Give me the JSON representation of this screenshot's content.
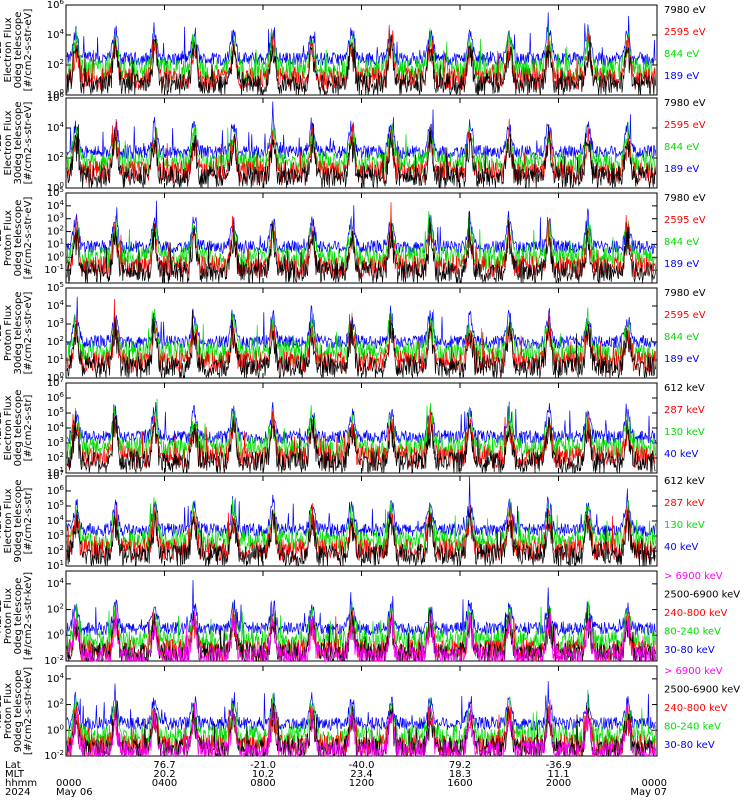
{
  "chart_data": {
    "type": "line",
    "panels": [
      {
        "ylabel": [
          "TED",
          "Electron Flux",
          "0deg telescope",
          "[#/cm2-s-str-eV]"
        ],
        "ylim": [
          1,
          1000000
        ],
        "ytick_labels": [
          "10^0",
          "10^2",
          "10^4",
          "10^6"
        ],
        "legend": [
          {
            "label": "7980 eV",
            "color": "#000000"
          },
          {
            "label": "2595 eV",
            "color": "#ff0000"
          },
          {
            "label": "844 eV",
            "color": "#00dd00"
          },
          {
            "label": "189 eV",
            "color": "#0000ff"
          }
        ]
      },
      {
        "ylabel": [
          "TED",
          "Electron Flux",
          "30deg telescope",
          "[#/cm2-s-str-eV]"
        ],
        "ylim": [
          1,
          1000000
        ],
        "ytick_labels": [
          "10^0",
          "10^2",
          "10^4",
          "10^6"
        ],
        "legend": [
          {
            "label": "7980 eV",
            "color": "#000000"
          },
          {
            "label": "2595 eV",
            "color": "#ff0000"
          },
          {
            "label": "844 eV",
            "color": "#00dd00"
          },
          {
            "label": "189 eV",
            "color": "#0000ff"
          }
        ]
      },
      {
        "ylabel": [
          "TED",
          "Proton Flux",
          "0deg telescope",
          "[#/cm2-s-str-eV]"
        ],
        "ylim": [
          0.01,
          100000
        ],
        "ytick_labels": [
          "10^-1",
          "10^0",
          "10^1",
          "10^2",
          "10^3",
          "10^4",
          "10^5"
        ],
        "legend": [
          {
            "label": "7980 eV",
            "color": "#000000"
          },
          {
            "label": "2595 eV",
            "color": "#ff0000"
          },
          {
            "label": "844 eV",
            "color": "#00dd00"
          },
          {
            "label": "189 eV",
            "color": "#0000ff"
          }
        ]
      },
      {
        "ylabel": [
          "TED",
          "Proton Flux",
          "30deg telescope",
          "[#/cm2-s-str-eV]"
        ],
        "ylim": [
          1,
          100000
        ],
        "ytick_labels": [
          "10^0",
          "10^1",
          "10^2",
          "10^3",
          "10^4",
          "10^5"
        ],
        "legend": [
          {
            "label": "7980 eV",
            "color": "#000000"
          },
          {
            "label": "2595 eV",
            "color": "#ff0000"
          },
          {
            "label": "844 eV",
            "color": "#00dd00"
          },
          {
            "label": "189 eV",
            "color": "#0000ff"
          }
        ]
      },
      {
        "ylabel": [
          "MEPED",
          "Electron Flux",
          "0deg telescope",
          "[#/cm2-s-str]"
        ],
        "ylim": [
          10,
          10000000
        ],
        "ytick_labels": [
          "10^1",
          "10^2",
          "10^3",
          "10^4",
          "10^5",
          "10^6",
          "10^7"
        ],
        "legend": [
          {
            "label": "612 keV",
            "color": "#000000"
          },
          {
            "label": "287 keV",
            "color": "#ff0000"
          },
          {
            "label": "130 keV",
            "color": "#00dd00"
          },
          {
            "label": "40 keV",
            "color": "#0000ff"
          }
        ]
      },
      {
        "ylabel": [
          "MEPED",
          "Electron Flux",
          "90deg telescope",
          "[#/cm2-s-str]"
        ],
        "ylim": [
          10,
          10000000
        ],
        "ytick_labels": [
          "10^1",
          "10^2",
          "10^3",
          "10^4",
          "10^5",
          "10^6",
          "10^7"
        ],
        "legend": [
          {
            "label": "612 keV",
            "color": "#000000"
          },
          {
            "label": "287 keV",
            "color": "#ff0000"
          },
          {
            "label": "130 keV",
            "color": "#00dd00"
          },
          {
            "label": "40 keV",
            "color": "#0000ff"
          }
        ]
      },
      {
        "ylabel": [
          "MEPED",
          "Proton Flux",
          "0deg telescope",
          "[#/cm2-s-str-keV]"
        ],
        "ylim": [
          0.01,
          100000
        ],
        "ytick_labels": [
          "10^-2",
          "10^0",
          "10^2",
          "10^4"
        ],
        "legend": [
          {
            "label": "> 6900 keV",
            "color": "#ff00ff"
          },
          {
            "label": "2500-6900 keV",
            "color": "#000000"
          },
          {
            "label": "240-800 keV",
            "color": "#ff0000"
          },
          {
            "label": "80-240 keV",
            "color": "#00dd00"
          },
          {
            "label": "30-80 keV",
            "color": "#0000ff"
          }
        ]
      },
      {
        "ylabel": [
          "MEPED",
          "Proton Flux",
          "90deg telescope",
          "[#/cm2-s-str-keV]"
        ],
        "ylim": [
          0.01,
          100000
        ],
        "ytick_labels": [
          "10^-2",
          "10^0",
          "10^2",
          "10^4"
        ],
        "legend": [
          {
            "label": "> 6900 keV",
            "color": "#ff00ff"
          },
          {
            "label": "2500-6900 keV",
            "color": "#000000"
          },
          {
            "label": "240-800 keV",
            "color": "#ff0000"
          },
          {
            "label": "80-240 keV",
            "color": "#00dd00"
          },
          {
            "label": "30-80 keV",
            "color": "#0000ff"
          }
        ]
      }
    ],
    "x_axis": {
      "row_labels": [
        "Lat",
        "MLT",
        "hhmm",
        "2024"
      ],
      "ticks": [
        {
          "hour": 0,
          "lat": "",
          "mlt": "",
          "hhmm": "0000",
          "date": "May 06"
        },
        {
          "hour": 4,
          "lat": "76.7",
          "mlt": "20.2",
          "hhmm": "0400",
          "date": ""
        },
        {
          "hour": 8,
          "lat": "-21.0",
          "mlt": "10.2",
          "hhmm": "0800",
          "date": ""
        },
        {
          "hour": 12,
          "lat": "-40.0",
          "mlt": "23.4",
          "hhmm": "1200",
          "date": ""
        },
        {
          "hour": 16,
          "lat": "79.2",
          "mlt": "18.3",
          "hhmm": "1600",
          "date": ""
        },
        {
          "hour": 20,
          "lat": "-36.9",
          "mlt": "11.1",
          "hhmm": "2000",
          "date": ""
        },
        {
          "hour": 24,
          "lat": "",
          "mlt": "",
          "hhmm": "0000",
          "date": "May 07"
        }
      ],
      "range_hours": [
        0,
        24
      ],
      "pass_count": 15
    }
  }
}
